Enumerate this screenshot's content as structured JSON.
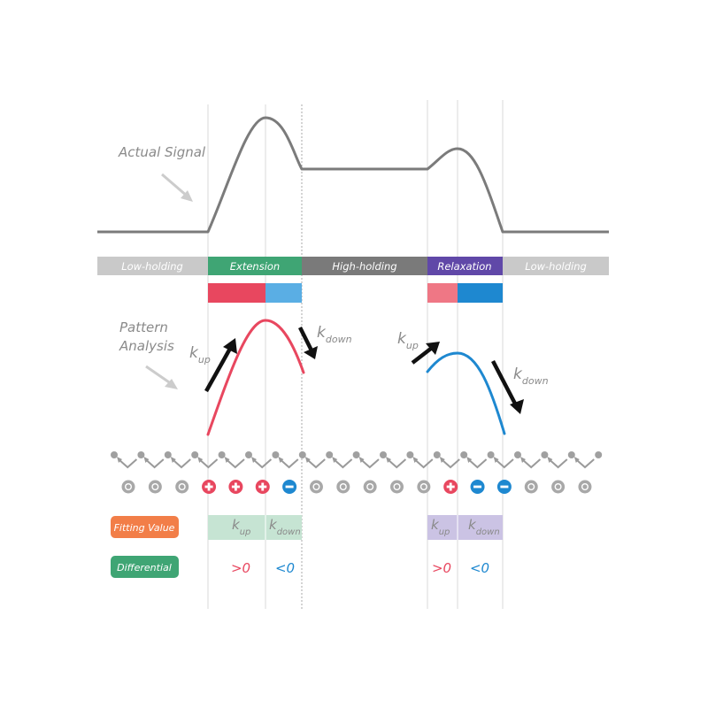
{
  "colors": {
    "signal": "#7b7b7b",
    "gray_bar": "#c9c9c9",
    "dark_gray_bar": "#7a7a7a",
    "extension": "#3fa574",
    "relaxation": "#6048a8",
    "red": "#e8475f",
    "red_light": "#ef7785",
    "blue": "#1e88d0",
    "blue_light": "#5aaee4",
    "fitting_badge": "#f27e48",
    "differential_badge": "#3fa574",
    "fitting_ext_box": "#c6e4d3",
    "fitting_rel_box": "#cbc3e4"
  },
  "labels": {
    "actual_signal": "Actual Signal",
    "pattern_analysis_line1": "Pattern",
    "pattern_analysis_line2": "Analysis"
  },
  "phases": [
    {
      "label": "Low-holding",
      "color": "#c9c9c9"
    },
    {
      "label": "Extension",
      "color": "#3fa574"
    },
    {
      "label": "High-holding",
      "color": "#7a7a7a"
    },
    {
      "label": "Relaxation",
      "color": "#6048a8"
    },
    {
      "label": "Low-holding",
      "color": "#c9c9c9"
    }
  ],
  "arrows": {
    "k": "k",
    "up": "up",
    "down": "down"
  },
  "markers": [
    "neutral",
    "neutral",
    "neutral",
    "plus",
    "plus",
    "plus",
    "minus",
    "neutral",
    "neutral",
    "neutral",
    "neutral",
    "neutral",
    "plus",
    "minus",
    "minus",
    "neutral",
    "neutral",
    "neutral"
  ],
  "marker_icons": {
    "plus": "+",
    "minus": "−"
  },
  "fitting": {
    "badge": "Fitting Value",
    "k": "k",
    "up": "up",
    "down": "down"
  },
  "differential": {
    "badge": "Differential",
    "ext_up": ">0",
    "ext_down": "<0",
    "rel_up": ">0",
    "rel_down": "<0"
  }
}
